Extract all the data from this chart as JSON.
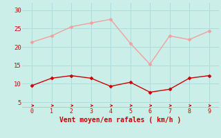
{
  "x": [
    0,
    1,
    2,
    3,
    4,
    5,
    6,
    7,
    8,
    9
  ],
  "wind_avg": [
    9.5,
    11.5,
    12.2,
    11.5,
    9.3,
    10.4,
    7.7,
    8.5,
    11.5,
    12.2
  ],
  "wind_gust": [
    21.3,
    23.0,
    25.5,
    26.5,
    27.5,
    21.0,
    15.3,
    23.0,
    22.0,
    24.3
  ],
  "avg_color": "#cc0000",
  "gust_color": "#f0a0a0",
  "bg_color": "#cceee8",
  "grid_color": "#aadddd",
  "axis_color": "#cc0000",
  "xlabel": "Vent moyen/en rafales ( km/h )",
  "yticks": [
    5,
    10,
    15,
    20,
    25,
    30
  ],
  "xticks": [
    0,
    1,
    2,
    3,
    4,
    5,
    6,
    7,
    8,
    9
  ],
  "ylim": [
    3.5,
    32
  ],
  "xlim": [
    -0.5,
    9.5
  ]
}
